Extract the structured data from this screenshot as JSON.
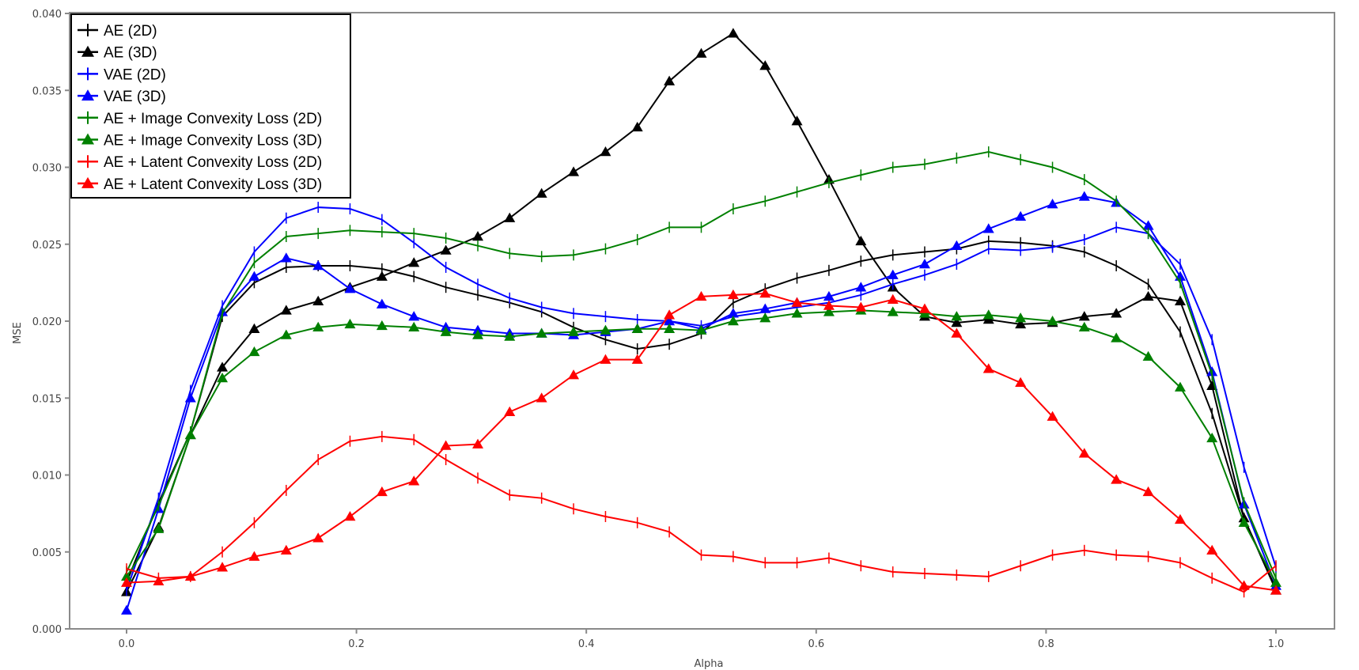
{
  "chart_data": {
    "type": "line",
    "title": "",
    "xlabel": "Alpha",
    "ylabel": "MSE",
    "xlim": [
      -0.05,
      1.05
    ],
    "ylim": [
      0.0,
      0.04
    ],
    "xticks": [
      "0.0",
      "0.2",
      "0.4",
      "0.6",
      "0.8",
      "1.0"
    ],
    "yticks": [
      "0.000",
      "0.005",
      "0.010",
      "0.015",
      "0.020",
      "0.025",
      "0.030",
      "0.035",
      "0.040"
    ],
    "grid": false,
    "legend_position": "upper left",
    "x": [
      0.0,
      0.0278,
      0.0556,
      0.0833,
      0.1111,
      0.1389,
      0.1667,
      0.1944,
      0.2222,
      0.25,
      0.2778,
      0.3056,
      0.3333,
      0.3611,
      0.3889,
      0.4167,
      0.4444,
      0.4722,
      0.5,
      0.5278,
      0.5556,
      0.5833,
      0.6111,
      0.6389,
      0.6667,
      0.6944,
      0.7222,
      0.75,
      0.7778,
      0.8056,
      0.8333,
      0.8611,
      0.8889,
      0.9167,
      0.9444,
      0.9722,
      1.0
    ],
    "series": [
      {
        "name": "AE (2D)",
        "color": "#000000",
        "marker": "plus",
        "values": [
          0.003,
          0.0082,
          0.0128,
          0.0203,
          0.0225,
          0.0235,
          0.0236,
          0.0236,
          0.0234,
          0.0229,
          0.0222,
          0.0217,
          0.0212,
          0.0206,
          0.0196,
          0.0188,
          0.0182,
          0.0185,
          0.0192,
          0.0212,
          0.0221,
          0.0228,
          0.0233,
          0.0239,
          0.0243,
          0.0245,
          0.0247,
          0.0252,
          0.0251,
          0.0249,
          0.0245,
          0.0236,
          0.0224,
          0.0193,
          0.014,
          0.0072,
          0.0026
        ]
      },
      {
        "name": "AE (3D)",
        "color": "#000000",
        "marker": "triangle",
        "values": [
          0.0024,
          0.0066,
          0.0126,
          0.017,
          0.0195,
          0.0207,
          0.0213,
          0.0222,
          0.0229,
          0.0238,
          0.0246,
          0.0255,
          0.0267,
          0.0283,
          0.0297,
          0.031,
          0.0326,
          0.0356,
          0.0374,
          0.0387,
          0.0366,
          0.033,
          0.0292,
          0.0252,
          0.0222,
          0.0203,
          0.0199,
          0.0201,
          0.0198,
          0.0199,
          0.0203,
          0.0205,
          0.0216,
          0.0213,
          0.0158,
          0.0072,
          0.0025
        ]
      },
      {
        "name": "VAE (2D)",
        "color": "#0000ff",
        "marker": "plus",
        "values": [
          0.0025,
          0.0085,
          0.0155,
          0.021,
          0.0245,
          0.0267,
          0.0274,
          0.0273,
          0.0266,
          0.0251,
          0.0235,
          0.0224,
          0.0215,
          0.0209,
          0.0205,
          0.0203,
          0.0201,
          0.02,
          0.0197,
          0.0203,
          0.0206,
          0.0209,
          0.0212,
          0.0217,
          0.0224,
          0.023,
          0.0237,
          0.0247,
          0.0246,
          0.0248,
          0.0253,
          0.0261,
          0.0257,
          0.0237,
          0.0188,
          0.0105,
          0.004
        ]
      },
      {
        "name": "VAE (3D)",
        "color": "#0000ff",
        "marker": "triangle",
        "values": [
          0.0012,
          0.0078,
          0.015,
          0.0206,
          0.0229,
          0.0241,
          0.0236,
          0.0221,
          0.0211,
          0.0203,
          0.0196,
          0.0194,
          0.0192,
          0.0192,
          0.0191,
          0.0193,
          0.0195,
          0.02,
          0.0195,
          0.0205,
          0.0208,
          0.0212,
          0.0216,
          0.0222,
          0.023,
          0.0237,
          0.0249,
          0.026,
          0.0268,
          0.0276,
          0.0281,
          0.0277,
          0.0262,
          0.0229,
          0.0167,
          0.0081,
          0.0028
        ]
      },
      {
        "name": "AE + Image Convexity Loss (2D)",
        "color": "#008000",
        "marker": "plus",
        "values": [
          0.0037,
          0.008,
          0.0128,
          0.0205,
          0.0238,
          0.0255,
          0.0257,
          0.0259,
          0.0258,
          0.0257,
          0.0254,
          0.0249,
          0.0244,
          0.0242,
          0.0243,
          0.0247,
          0.0253,
          0.0261,
          0.0261,
          0.0273,
          0.0278,
          0.0284,
          0.029,
          0.0295,
          0.03,
          0.0302,
          0.0306,
          0.031,
          0.0305,
          0.03,
          0.0292,
          0.0278,
          0.0257,
          0.0225,
          0.0165,
          0.0082,
          0.0033
        ]
      },
      {
        "name": "AE + Image Convexity Loss (3D)",
        "color": "#008000",
        "marker": "triangle",
        "values": [
          0.0034,
          0.0065,
          0.0126,
          0.0163,
          0.018,
          0.0191,
          0.0196,
          0.0198,
          0.0197,
          0.0196,
          0.0193,
          0.0191,
          0.019,
          0.0192,
          0.0193,
          0.0194,
          0.0195,
          0.0195,
          0.0194,
          0.02,
          0.0202,
          0.0205,
          0.0206,
          0.0207,
          0.0206,
          0.0205,
          0.0203,
          0.0204,
          0.0202,
          0.02,
          0.0196,
          0.0189,
          0.0177,
          0.0157,
          0.0124,
          0.0069,
          0.003
        ]
      },
      {
        "name": "AE + Latent Convexity Loss (2D)",
        "color": "#ff0000",
        "marker": "plus",
        "values": [
          0.0039,
          0.0033,
          0.0034,
          0.005,
          0.0069,
          0.009,
          0.011,
          0.0122,
          0.0125,
          0.0123,
          0.011,
          0.0098,
          0.0087,
          0.0085,
          0.0078,
          0.0073,
          0.0069,
          0.0063,
          0.0048,
          0.0047,
          0.0043,
          0.0043,
          0.0046,
          0.0041,
          0.0037,
          0.0036,
          0.0035,
          0.0034,
          0.0041,
          0.0048,
          0.0051,
          0.0048,
          0.0047,
          0.0043,
          0.0033,
          0.0024,
          0.0041
        ]
      },
      {
        "name": "AE + Latent Convexity Loss (3D)",
        "color": "#ff0000",
        "marker": "triangle",
        "values": [
          0.003,
          0.0031,
          0.0034,
          0.004,
          0.0047,
          0.0051,
          0.0059,
          0.0073,
          0.0089,
          0.0096,
          0.0119,
          0.012,
          0.0141,
          0.015,
          0.0165,
          0.0175,
          0.0175,
          0.0204,
          0.0216,
          0.0217,
          0.0218,
          0.0212,
          0.021,
          0.0209,
          0.0214,
          0.0208,
          0.0192,
          0.0169,
          0.016,
          0.0138,
          0.0114,
          0.0097,
          0.0089,
          0.0071,
          0.0051,
          0.0028,
          0.0025
        ]
      }
    ]
  }
}
